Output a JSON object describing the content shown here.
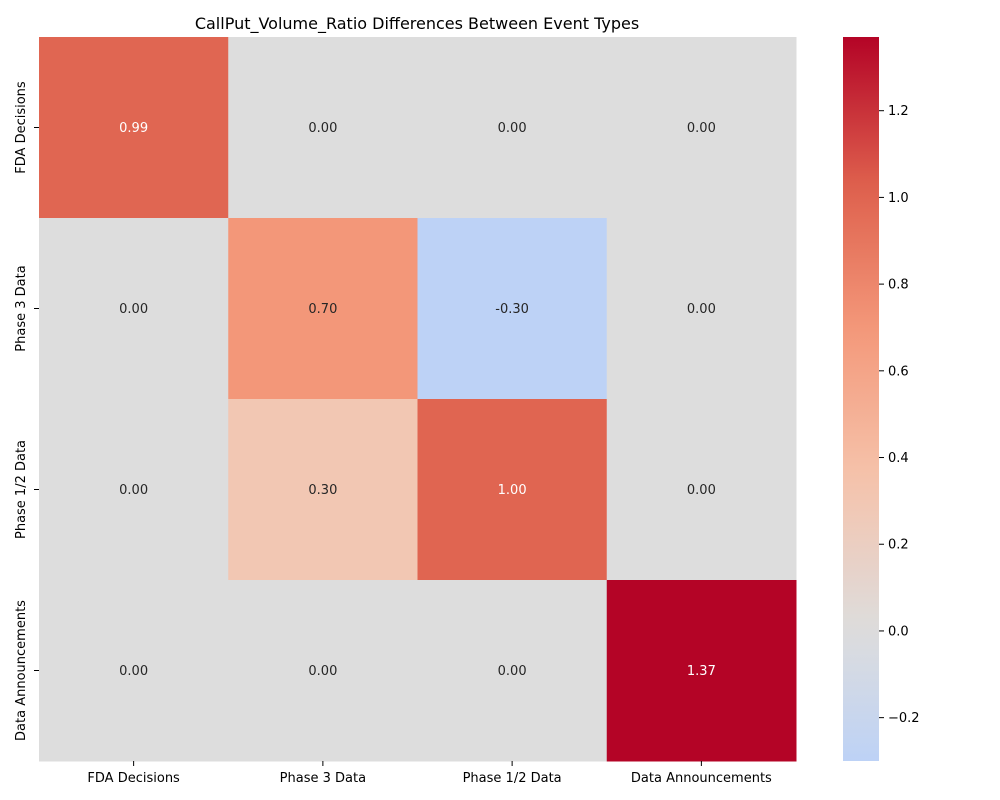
{
  "chart_data": {
    "type": "heatmap",
    "title": "CallPut_Volume_Ratio Differences Between Event Types",
    "xlabel": "",
    "ylabel": "",
    "x_categories": [
      "FDA Decisions",
      "Phase 3 Data",
      "Phase 1/2 Data",
      "Data Announcements"
    ],
    "y_categories": [
      "FDA Decisions",
      "Phase 3 Data",
      "Phase 1/2 Data",
      "Data Announcements"
    ],
    "values": [
      [
        0.99,
        0.0,
        0.0,
        0.0
      ],
      [
        0.0,
        0.7,
        -0.3,
        0.0
      ],
      [
        0.0,
        0.3,
        1.0,
        0.0
      ],
      [
        0.0,
        0.0,
        0.0,
        1.37
      ]
    ],
    "cell_labels": [
      [
        "0.99",
        "0.00",
        "0.00",
        "0.00"
      ],
      [
        "0.00",
        "0.70",
        "-0.30",
        "0.00"
      ],
      [
        "0.00",
        "0.30",
        "1.00",
        "0.00"
      ],
      [
        "0.00",
        "0.00",
        "0.00",
        "1.37"
      ]
    ],
    "colorbar": {
      "colormap": "coolwarm",
      "vmin": -0.3,
      "vmax": 1.37,
      "center": 0.0,
      "ticks": [
        -0.2,
        0.0,
        0.2,
        0.4,
        0.6,
        0.8,
        1.0,
        1.2
      ],
      "tick_labels": [
        "−0.2",
        "0.0",
        "0.2",
        "0.4",
        "0.6",
        "0.8",
        "1.0",
        "1.2"
      ]
    },
    "grid": false,
    "legend": "colorbar-right"
  }
}
